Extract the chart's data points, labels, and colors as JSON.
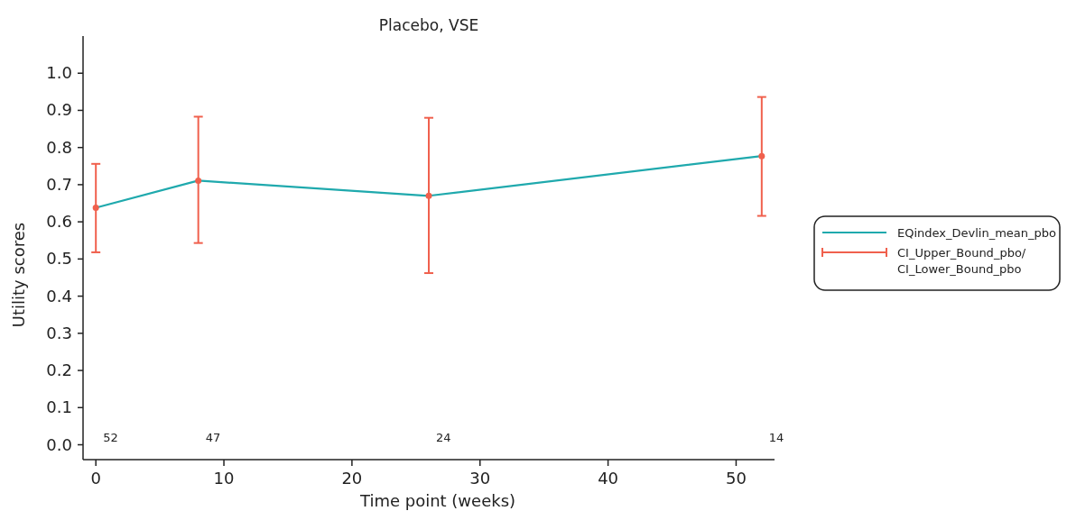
{
  "chart_data": {
    "type": "line",
    "title": "Placebo, VSE",
    "xlabel": "Time point (weeks)",
    "ylabel": "Utility scores",
    "x": [
      0,
      8,
      26,
      52
    ],
    "series": [
      {
        "name": "EQindex_Devlin_mean_pbo",
        "color": "#1fa9ad",
        "values": [
          0.638,
          0.711,
          0.67,
          0.777
        ]
      },
      {
        "name": "CI_Upper_Bound_pbo/ CI_Lower_Bound_pbo",
        "type": "scatter",
        "marker": "circle",
        "color": "#f0604d",
        "values": [
          0.638,
          0.711,
          0.67,
          0.777
        ],
        "errors": [
          [
            0.518,
            0.756
          ],
          [
            0.543,
            0.883
          ],
          [
            0.462,
            0.88
          ],
          [
            0.616,
            0.936
          ]
        ]
      }
    ],
    "annotations": [
      "52",
      "47",
      "24",
      "14"
    ],
    "xlim": [
      -1,
      53
    ],
    "ylim": [
      -0.04,
      1.1
    ],
    "xticks": [
      0,
      10,
      20,
      30,
      40,
      50
    ],
    "yticks": [
      {
        "value": 0,
        "label": "0.0"
      },
      {
        "value": 0.1,
        "label": "0.1"
      },
      {
        "value": 0.2,
        "label": "0.2"
      },
      {
        "value": 0.3,
        "label": "0.3"
      },
      {
        "value": 0.4,
        "label": "0.4"
      },
      {
        "value": 0.5,
        "label": "0.5"
      },
      {
        "value": 0.6,
        "label": "0.6"
      },
      {
        "value": 0.7,
        "label": "0.7"
      },
      {
        "value": 0.8,
        "label": "0.8"
      },
      {
        "value": 0.9,
        "label": "0.9"
      },
      {
        "value": 1.0,
        "label": "1.0"
      }
    ],
    "legend": "right",
    "grid": false
  }
}
